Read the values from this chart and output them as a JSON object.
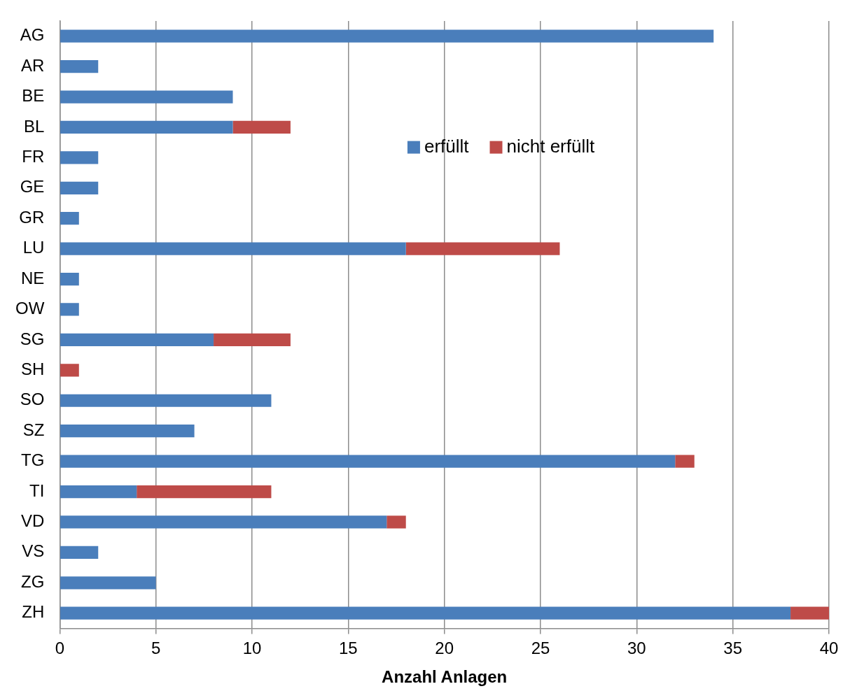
{
  "chart_data": {
    "type": "bar",
    "orientation": "horizontal",
    "stacked": true,
    "xlabel": "Anzahl Anlagen",
    "categories": [
      "AG",
      "AR",
      "BE",
      "BL",
      "FR",
      "GE",
      "GR",
      "LU",
      "NE",
      "OW",
      "SG",
      "SH",
      "SO",
      "SZ",
      "TG",
      "TI",
      "VD",
      "VS",
      "ZG",
      "ZH"
    ],
    "series": [
      {
        "name": "erfüllt",
        "color": "#4a7ebb",
        "values": [
          34,
          2,
          9,
          9,
          2,
          2,
          1,
          18,
          1,
          1,
          8,
          0,
          11,
          7,
          32,
          4,
          17,
          2,
          5,
          38
        ]
      },
      {
        "name": "nicht erfüllt",
        "color": "#be4b48",
        "values": [
          0,
          0,
          0,
          3,
          0,
          0,
          0,
          8,
          0,
          0,
          4,
          1,
          0,
          0,
          1,
          7,
          1,
          0,
          0,
          2
        ]
      }
    ],
    "xlim": [
      0,
      40
    ],
    "xticks": [
      0,
      5,
      10,
      15,
      20,
      25,
      30,
      35,
      40
    ],
    "grid": "x",
    "legend": "top right"
  }
}
